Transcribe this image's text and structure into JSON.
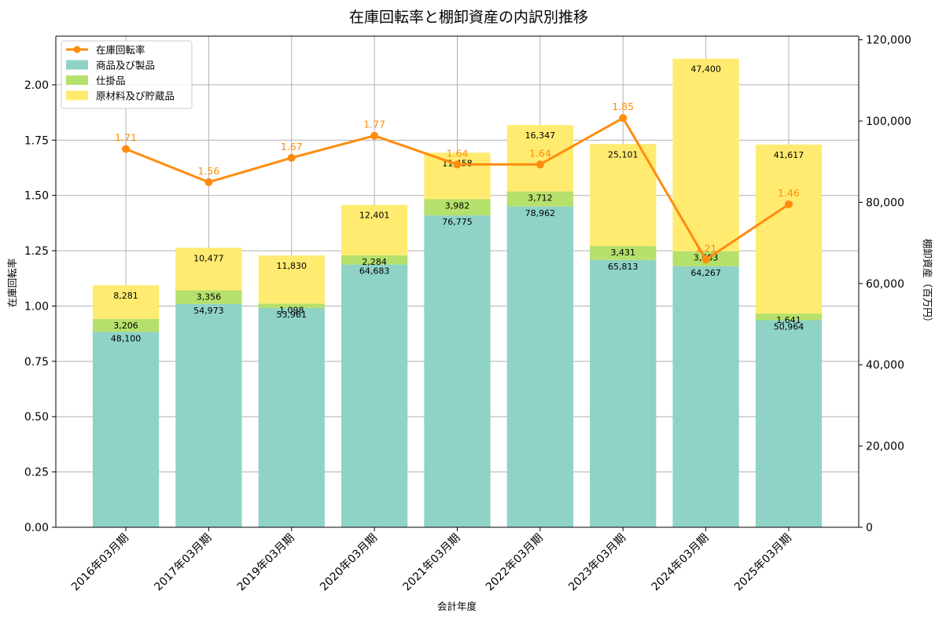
{
  "chart_data": {
    "type": "bar",
    "subtype": "stacked-bar-with-line",
    "title": "在庫回転率と棚卸資産の内訳別推移",
    "xlabel": "会計年度",
    "ylabel_left": "在庫回転率",
    "ylabel_right": "棚卸資産（百万円）",
    "categories": [
      "2016年03月期",
      "2017年03月期",
      "2019年03月期",
      "2020年03月期",
      "2021年03月期",
      "2022年03月期",
      "2023年03月期",
      "2024年03月期",
      "2025年03月期"
    ],
    "ylim_left": [
      0,
      2.22
    ],
    "ylim_right": [
      0,
      120900
    ],
    "left_ticks": [
      "0.00",
      "0.25",
      "0.50",
      "0.75",
      "1.00",
      "1.25",
      "1.50",
      "1.75",
      "2.00"
    ],
    "left_tick_values": [
      0,
      0.25,
      0.5,
      0.75,
      1.0,
      1.25,
      1.5,
      1.75,
      2.0
    ],
    "right_ticks": [
      "0",
      "20,000",
      "40,000",
      "60,000",
      "80,000",
      "100,000",
      "120,000"
    ],
    "right_tick_values": [
      0,
      20000,
      40000,
      60000,
      80000,
      100000,
      120000
    ],
    "grid": true,
    "legend_position": "top-left",
    "series": [
      {
        "name": "商品及び製品",
        "axis": "right",
        "color": "#8fd3c7",
        "values": [
          48100,
          54973,
          53961,
          64683,
          76775,
          78962,
          65813,
          64267,
          50964
        ],
        "labels": [
          "48,100",
          "54,973",
          "53,961",
          "64,683",
          "76,775",
          "78,962",
          "65,813",
          "64,267",
          "50,964"
        ]
      },
      {
        "name": "仕掛品",
        "axis": "right",
        "color": "#b5e06b",
        "values": [
          3206,
          3356,
          1098,
          2284,
          3982,
          3712,
          3431,
          3683,
          1641
        ],
        "labels": [
          "3,206",
          "3,356",
          "1,098",
          "2,284",
          "3,982",
          "3,712",
          "3,431",
          "3,683",
          "1,641"
        ]
      },
      {
        "name": "原材料及び貯蔵品",
        "axis": "right",
        "color": "#ffeb70",
        "values": [
          8281,
          10477,
          11830,
          12401,
          11458,
          16347,
          25101,
          47400,
          41617
        ],
        "labels": [
          "8,281",
          "10,477",
          "11,830",
          "12,401",
          "11,458",
          "16,347",
          "25,101",
          "47,400",
          "41,617"
        ]
      },
      {
        "name": "在庫回転率",
        "axis": "left",
        "type": "line",
        "color": "#ff8c0f",
        "values": [
          1.71,
          1.56,
          1.67,
          1.77,
          1.64,
          1.64,
          1.85,
          1.21,
          1.46
        ],
        "labels": [
          "1.71",
          "1.56",
          "1.67",
          "1.77",
          "1.64",
          "1.64",
          "1.85",
          "1.21",
          "1.46"
        ]
      }
    ]
  }
}
